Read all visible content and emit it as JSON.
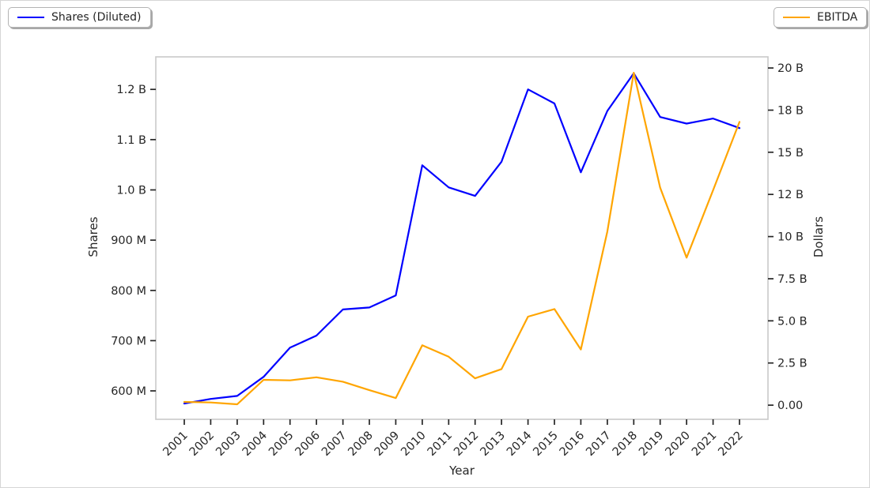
{
  "figure": {
    "background": "#ffffff",
    "spine_color": "#c9c9c9",
    "tick_color": "#262626",
    "text_color": "#262626"
  },
  "legend_left": {
    "label": "Shares (Diluted)",
    "color": "#0000ff"
  },
  "legend_right": {
    "label": "EBITDA",
    "color": "#ffa500"
  },
  "axes": {
    "x_label": "Year",
    "y_left_label": "Shares",
    "y_right_label": "Dollars"
  },
  "chart_data": {
    "type": "line",
    "title": "",
    "xlabel": "Year",
    "x": [
      2001,
      2002,
      2003,
      2004,
      2005,
      2006,
      2007,
      2008,
      2009,
      2010,
      2011,
      2012,
      2013,
      2014,
      2015,
      2016,
      2017,
      2018,
      2019,
      2020,
      2021,
      2022
    ],
    "series": [
      {
        "name": "Shares (Diluted)",
        "axis": "left",
        "color": "#0000ff",
        "unit": "shares (millions)",
        "values": [
          575,
          584,
          590,
          628,
          686,
          710,
          762,
          766,
          790,
          1049,
          1005,
          988,
          1056,
          1200,
          1172,
          1035,
          1157,
          1232,
          1145,
          1132,
          1142,
          1123
        ]
      },
      {
        "name": "EBITDA",
        "axis": "right",
        "color": "#ffa500",
        "unit": "dollars (billions)",
        "values": [
          0.19,
          0.16,
          0.05,
          1.5,
          1.47,
          1.65,
          1.39,
          0.89,
          0.42,
          3.55,
          2.87,
          1.59,
          2.14,
          5.25,
          5.7,
          3.3,
          10.3,
          19.72,
          12.9,
          8.75,
          12.75,
          16.8
        ]
      }
    ],
    "y_left": {
      "label": "Shares",
      "unit": "millions",
      "tick_values": [
        600,
        700,
        800,
        900,
        1000,
        1100,
        1200
      ],
      "tick_labels": [
        "600 M",
        "700 M",
        "800 M",
        "900 M",
        "1.0 B",
        "1.1 B",
        "1.2 B"
      ],
      "lim": [
        543.5,
        1264.7
      ]
    },
    "y_right": {
      "label": "Dollars",
      "unit": "billions",
      "tick_values": [
        0,
        2.5,
        5,
        7.5,
        10,
        12.5,
        15,
        17.5,
        20
      ],
      "tick_labels": [
        "0.00",
        "2.5 B",
        "5.0 B",
        "7.5 B",
        "10 B",
        "12 B",
        "15 B",
        "18 B",
        "20 B"
      ],
      "lim": [
        -0.84,
        20.66
      ]
    },
    "grid": false,
    "legend_position": "top-left-and-top-right-outside"
  }
}
